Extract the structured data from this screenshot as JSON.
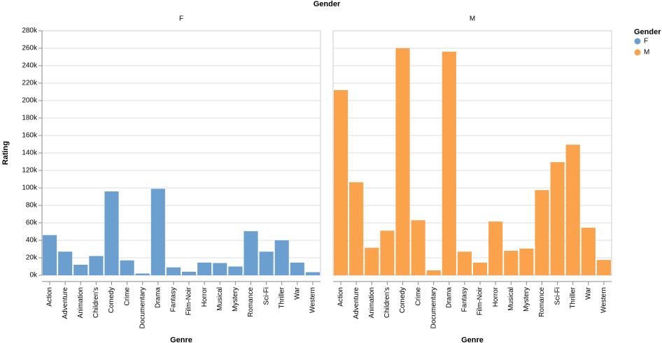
{
  "chart_data": {
    "type": "bar",
    "title": "Gender",
    "facet": true,
    "grid": true,
    "x_label": "Genre",
    "y_label": "Rating",
    "legend_title": "Gender",
    "legend_position": "top-right",
    "categories": [
      "Action",
      "Adventure",
      "Animation",
      "Children's",
      "Comedy",
      "Crime",
      "Documentary",
      "Drama",
      "Fantasy",
      "Film-Noir",
      "Horror",
      "Musical",
      "Mystery",
      "Romance",
      "Sci-Fi",
      "Thriller",
      "War",
      "Western"
    ],
    "series": [
      {
        "name": "F",
        "color": "#6a9fcf",
        "values": [
          46000,
          27000,
          12000,
          22000,
          96000,
          17000,
          2000,
          99000,
          9000,
          4000,
          14500,
          14000,
          10000,
          50500,
          27000,
          40000,
          14500,
          3500
        ]
      },
      {
        "name": "M",
        "color": "#fba24d",
        "values": [
          212000,
          106500,
          31500,
          51000,
          260000,
          63000,
          5600,
          256000,
          27000,
          14500,
          61500,
          28000,
          30500,
          97500,
          129500,
          149500,
          54500,
          17500
        ]
      }
    ],
    "ylim": [
      0,
      280000
    ],
    "yticks": [
      {
        "value": 0,
        "label": "0k"
      },
      {
        "value": 20000,
        "label": "20k"
      },
      {
        "value": 40000,
        "label": "40k"
      },
      {
        "value": 60000,
        "label": "60k"
      },
      {
        "value": 80000,
        "label": "80k"
      },
      {
        "value": 100000,
        "label": "100k"
      },
      {
        "value": 120000,
        "label": "120k"
      },
      {
        "value": 140000,
        "label": "140k"
      },
      {
        "value": 160000,
        "label": "160k"
      },
      {
        "value": 180000,
        "label": "180k"
      },
      {
        "value": 200000,
        "label": "200k"
      },
      {
        "value": 220000,
        "label": "220k"
      },
      {
        "value": 240000,
        "label": "240k"
      },
      {
        "value": 260000,
        "label": "260k"
      },
      {
        "value": 280000,
        "label": "280k"
      }
    ]
  }
}
